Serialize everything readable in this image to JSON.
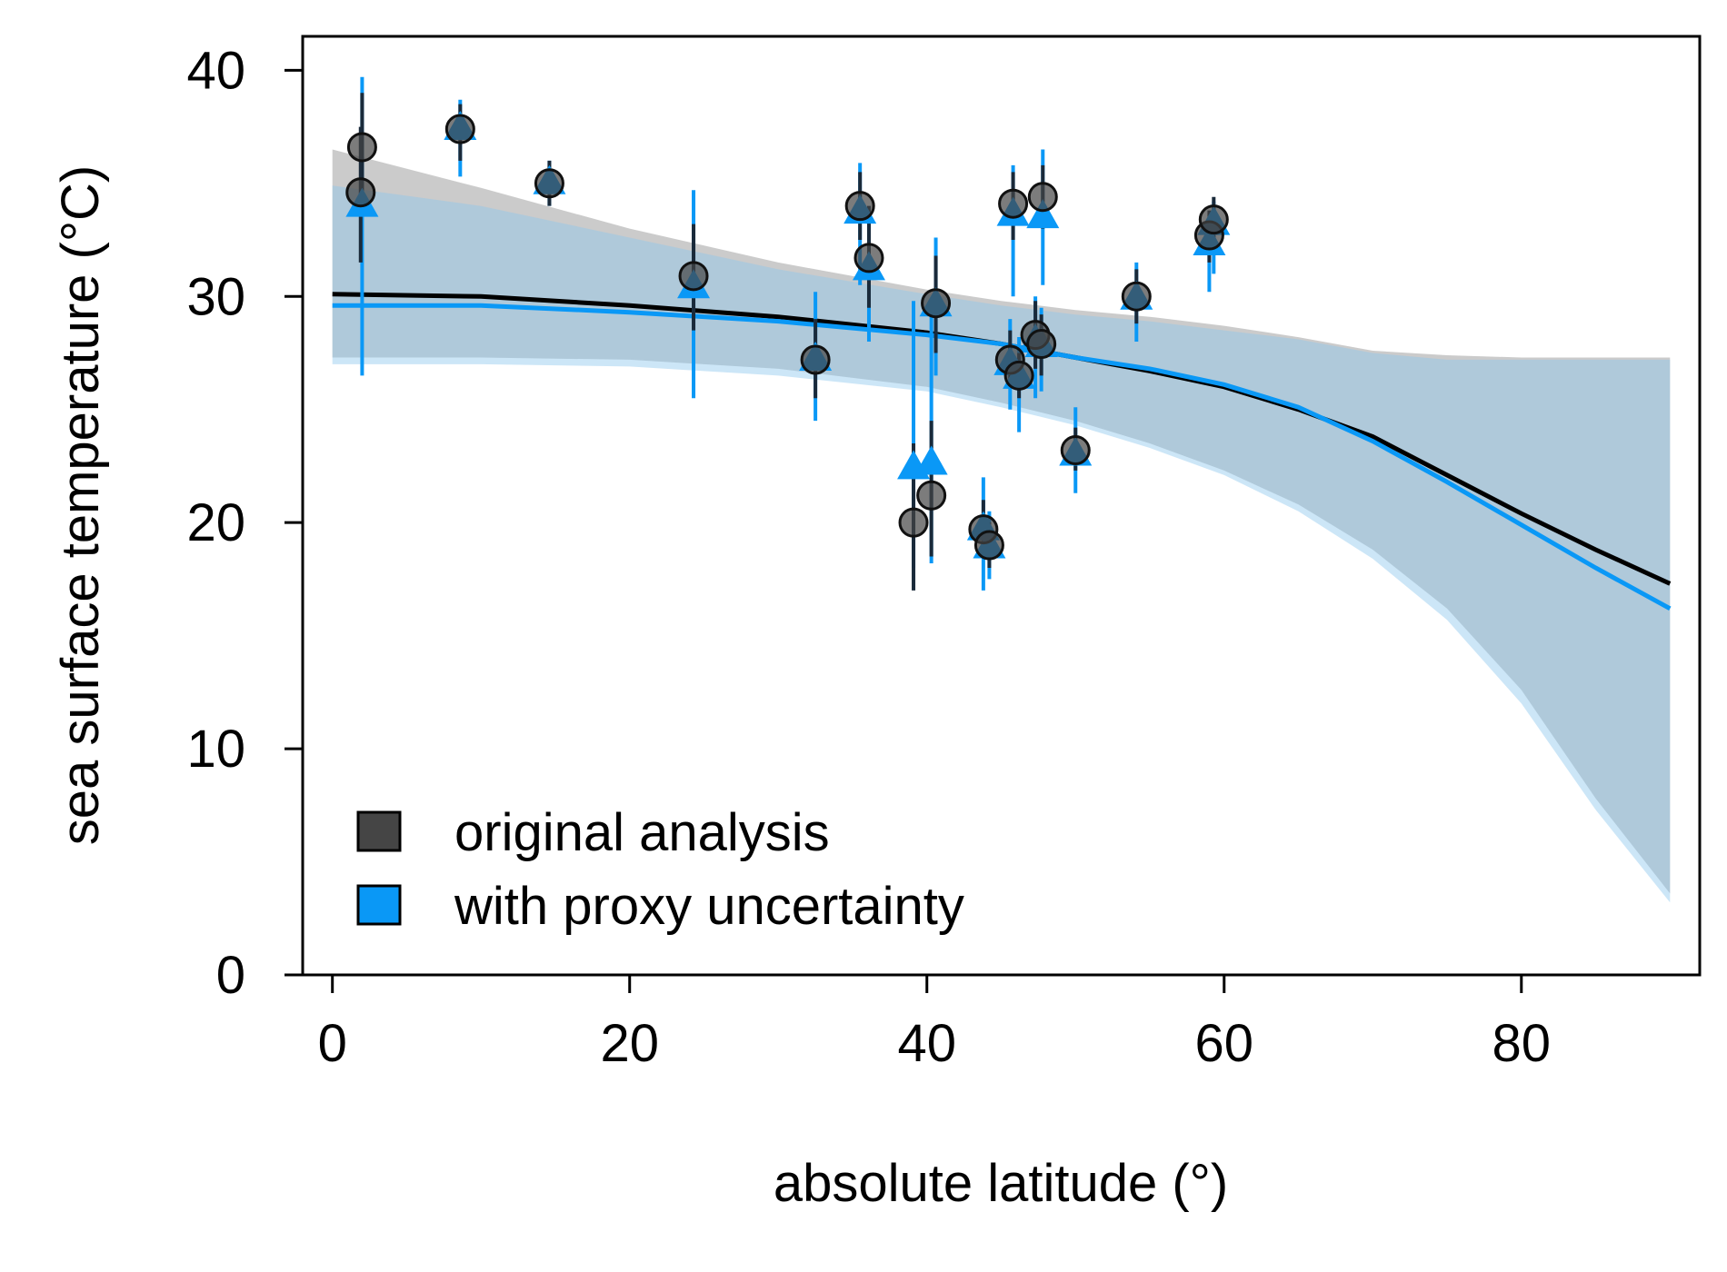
{
  "chart_data": {
    "type": "scatter",
    "title": "",
    "xlabel": "absolute latitude (°)",
    "ylabel": "sea surface temperature (°C)",
    "xlim": [
      -2,
      92
    ],
    "ylim": [
      0,
      41.5
    ],
    "xticks": [
      0,
      20,
      40,
      60,
      80
    ],
    "yticks": [
      0,
      10,
      20,
      30,
      40
    ],
    "xtick_labels": [
      "0",
      "20",
      "40",
      "60",
      "80"
    ],
    "ytick_labels": [
      "0",
      "10",
      "20",
      "30",
      "40"
    ],
    "grid": false,
    "legend_position": "bottom-left",
    "series": [
      {
        "name": "original analysis",
        "color": "#454545",
        "marker": "circle",
        "points": [
          {
            "x": 2.0,
            "y": 36.6,
            "lo": 34.5,
            "hi": 39.0
          },
          {
            "x": 1.9,
            "y": 34.6,
            "lo": 31.5,
            "hi": 37.5
          },
          {
            "x": 8.6,
            "y": 37.4,
            "lo": 36.0,
            "hi": 38.5
          },
          {
            "x": 14.6,
            "y": 35.0,
            "lo": 34.0,
            "hi": 36.0
          },
          {
            "x": 24.3,
            "y": 30.9,
            "lo": 28.5,
            "hi": 33.2
          },
          {
            "x": 32.5,
            "y": 27.2,
            "lo": 25.5,
            "hi": 29.0
          },
          {
            "x": 35.5,
            "y": 34.0,
            "lo": 32.5,
            "hi": 35.5
          },
          {
            "x": 36.1,
            "y": 31.7,
            "lo": 29.5,
            "hi": 34.0
          },
          {
            "x": 39.1,
            "y": 20.0,
            "lo": 17.0,
            "hi": 23.5
          },
          {
            "x": 40.3,
            "y": 21.2,
            "lo": 18.5,
            "hi": 24.5
          },
          {
            "x": 40.6,
            "y": 29.7,
            "lo": 27.5,
            "hi": 31.8
          },
          {
            "x": 43.8,
            "y": 19.7,
            "lo": 18.5,
            "hi": 21.0
          },
          {
            "x": 44.2,
            "y": 19.0,
            "lo": 18.0,
            "hi": 20.0
          },
          {
            "x": 45.6,
            "y": 27.2,
            "lo": 26.0,
            "hi": 28.5
          },
          {
            "x": 45.8,
            "y": 34.1,
            "lo": 32.5,
            "hi": 35.5
          },
          {
            "x": 46.2,
            "y": 26.5,
            "lo": 25.5,
            "hi": 27.5
          },
          {
            "x": 47.3,
            "y": 28.3,
            "lo": 26.8,
            "hi": 29.8
          },
          {
            "x": 47.7,
            "y": 27.9,
            "lo": 26.5,
            "hi": 29.2
          },
          {
            "x": 47.8,
            "y": 34.4,
            "lo": 33.0,
            "hi": 35.8
          },
          {
            "x": 50.0,
            "y": 23.2,
            "lo": 22.3,
            "hi": 24.2
          },
          {
            "x": 54.1,
            "y": 30.0,
            "lo": 28.8,
            "hi": 31.2
          },
          {
            "x": 59.0,
            "y": 32.7,
            "lo": 31.5,
            "hi": 33.8
          },
          {
            "x": 59.3,
            "y": 33.4,
            "lo": 32.4,
            "hi": 34.4
          }
        ],
        "curve": {
          "x": [
            0,
            10,
            20,
            30,
            40,
            45,
            50,
            55,
            60,
            65,
            70,
            75,
            80,
            85,
            90
          ],
          "y": [
            30.1,
            30.0,
            29.6,
            29.1,
            28.4,
            27.9,
            27.3,
            26.7,
            26.0,
            25.0,
            23.8,
            22.1,
            20.4,
            18.8,
            17.3
          ],
          "lower": [
            27.3,
            27.3,
            27.2,
            26.8,
            26.0,
            25.3,
            24.5,
            23.5,
            22.3,
            20.8,
            18.8,
            16.2,
            12.6,
            7.8,
            3.6
          ],
          "upper": [
            36.5,
            34.8,
            33.0,
            31.5,
            30.3,
            29.8,
            29.4,
            29.1,
            28.7,
            28.2,
            27.6,
            27.4,
            27.3,
            27.3,
            27.3
          ]
        }
      },
      {
        "name": "with proxy uncertainty",
        "color": "#0a98f6",
        "marker": "triangle",
        "points": [
          {
            "x": 2.0,
            "y": 34.0,
            "lo": 26.5,
            "hi": 39.7
          },
          {
            "x": 8.6,
            "y": 37.4,
            "lo": 35.3,
            "hi": 38.7
          },
          {
            "x": 14.6,
            "y": 35.0,
            "lo": 34.0,
            "hi": 36.0
          },
          {
            "x": 24.3,
            "y": 30.4,
            "lo": 25.5,
            "hi": 34.7
          },
          {
            "x": 32.5,
            "y": 27.2,
            "lo": 24.5,
            "hi": 30.2
          },
          {
            "x": 35.5,
            "y": 33.7,
            "lo": 30.5,
            "hi": 35.9
          },
          {
            "x": 36.1,
            "y": 31.2,
            "lo": 28.0,
            "hi": 33.5
          },
          {
            "x": 39.1,
            "y": 22.4,
            "lo": 18.0,
            "hi": 29.8
          },
          {
            "x": 40.3,
            "y": 22.6,
            "lo": 18.2,
            "hi": 29.5
          },
          {
            "x": 40.6,
            "y": 29.6,
            "lo": 26.5,
            "hi": 32.6
          },
          {
            "x": 43.8,
            "y": 19.7,
            "lo": 17.0,
            "hi": 22.0
          },
          {
            "x": 44.2,
            "y": 18.9,
            "lo": 17.5,
            "hi": 20.5
          },
          {
            "x": 45.6,
            "y": 27.0,
            "lo": 25.0,
            "hi": 29.0
          },
          {
            "x": 45.8,
            "y": 33.6,
            "lo": 30.0,
            "hi": 35.8
          },
          {
            "x": 46.2,
            "y": 26.4,
            "lo": 24.0,
            "hi": 28.2
          },
          {
            "x": 47.3,
            "y": 28.0,
            "lo": 25.5,
            "hi": 30.0
          },
          {
            "x": 47.7,
            "y": 27.8,
            "lo": 25.8,
            "hi": 29.5
          },
          {
            "x": 47.8,
            "y": 33.5,
            "lo": 30.5,
            "hi": 36.5
          },
          {
            "x": 50.0,
            "y": 23.0,
            "lo": 21.3,
            "hi": 25.1
          },
          {
            "x": 54.1,
            "y": 29.9,
            "lo": 28.0,
            "hi": 31.5
          },
          {
            "x": 59.0,
            "y": 32.3,
            "lo": 30.2,
            "hi": 33.5
          },
          {
            "x": 59.3,
            "y": 33.2,
            "lo": 31.0,
            "hi": 34.2
          }
        ],
        "curve": {
          "x": [
            0,
            10,
            20,
            30,
            40,
            45,
            50,
            55,
            60,
            65,
            70,
            75,
            80,
            85,
            90
          ],
          "y": [
            29.6,
            29.6,
            29.3,
            28.9,
            28.3,
            27.9,
            27.3,
            26.8,
            26.1,
            25.1,
            23.6,
            21.8,
            19.9,
            18.0,
            16.2
          ],
          "lower": [
            27.0,
            27.0,
            26.9,
            26.5,
            25.8,
            25.1,
            24.3,
            23.3,
            22.1,
            20.5,
            18.4,
            15.7,
            12.0,
            7.3,
            3.2
          ],
          "upper": [
            34.9,
            34.0,
            32.6,
            31.2,
            30.1,
            29.6,
            29.2,
            28.9,
            28.5,
            28.1,
            27.5,
            27.2,
            27.2,
            27.2,
            27.2
          ]
        }
      }
    ]
  }
}
